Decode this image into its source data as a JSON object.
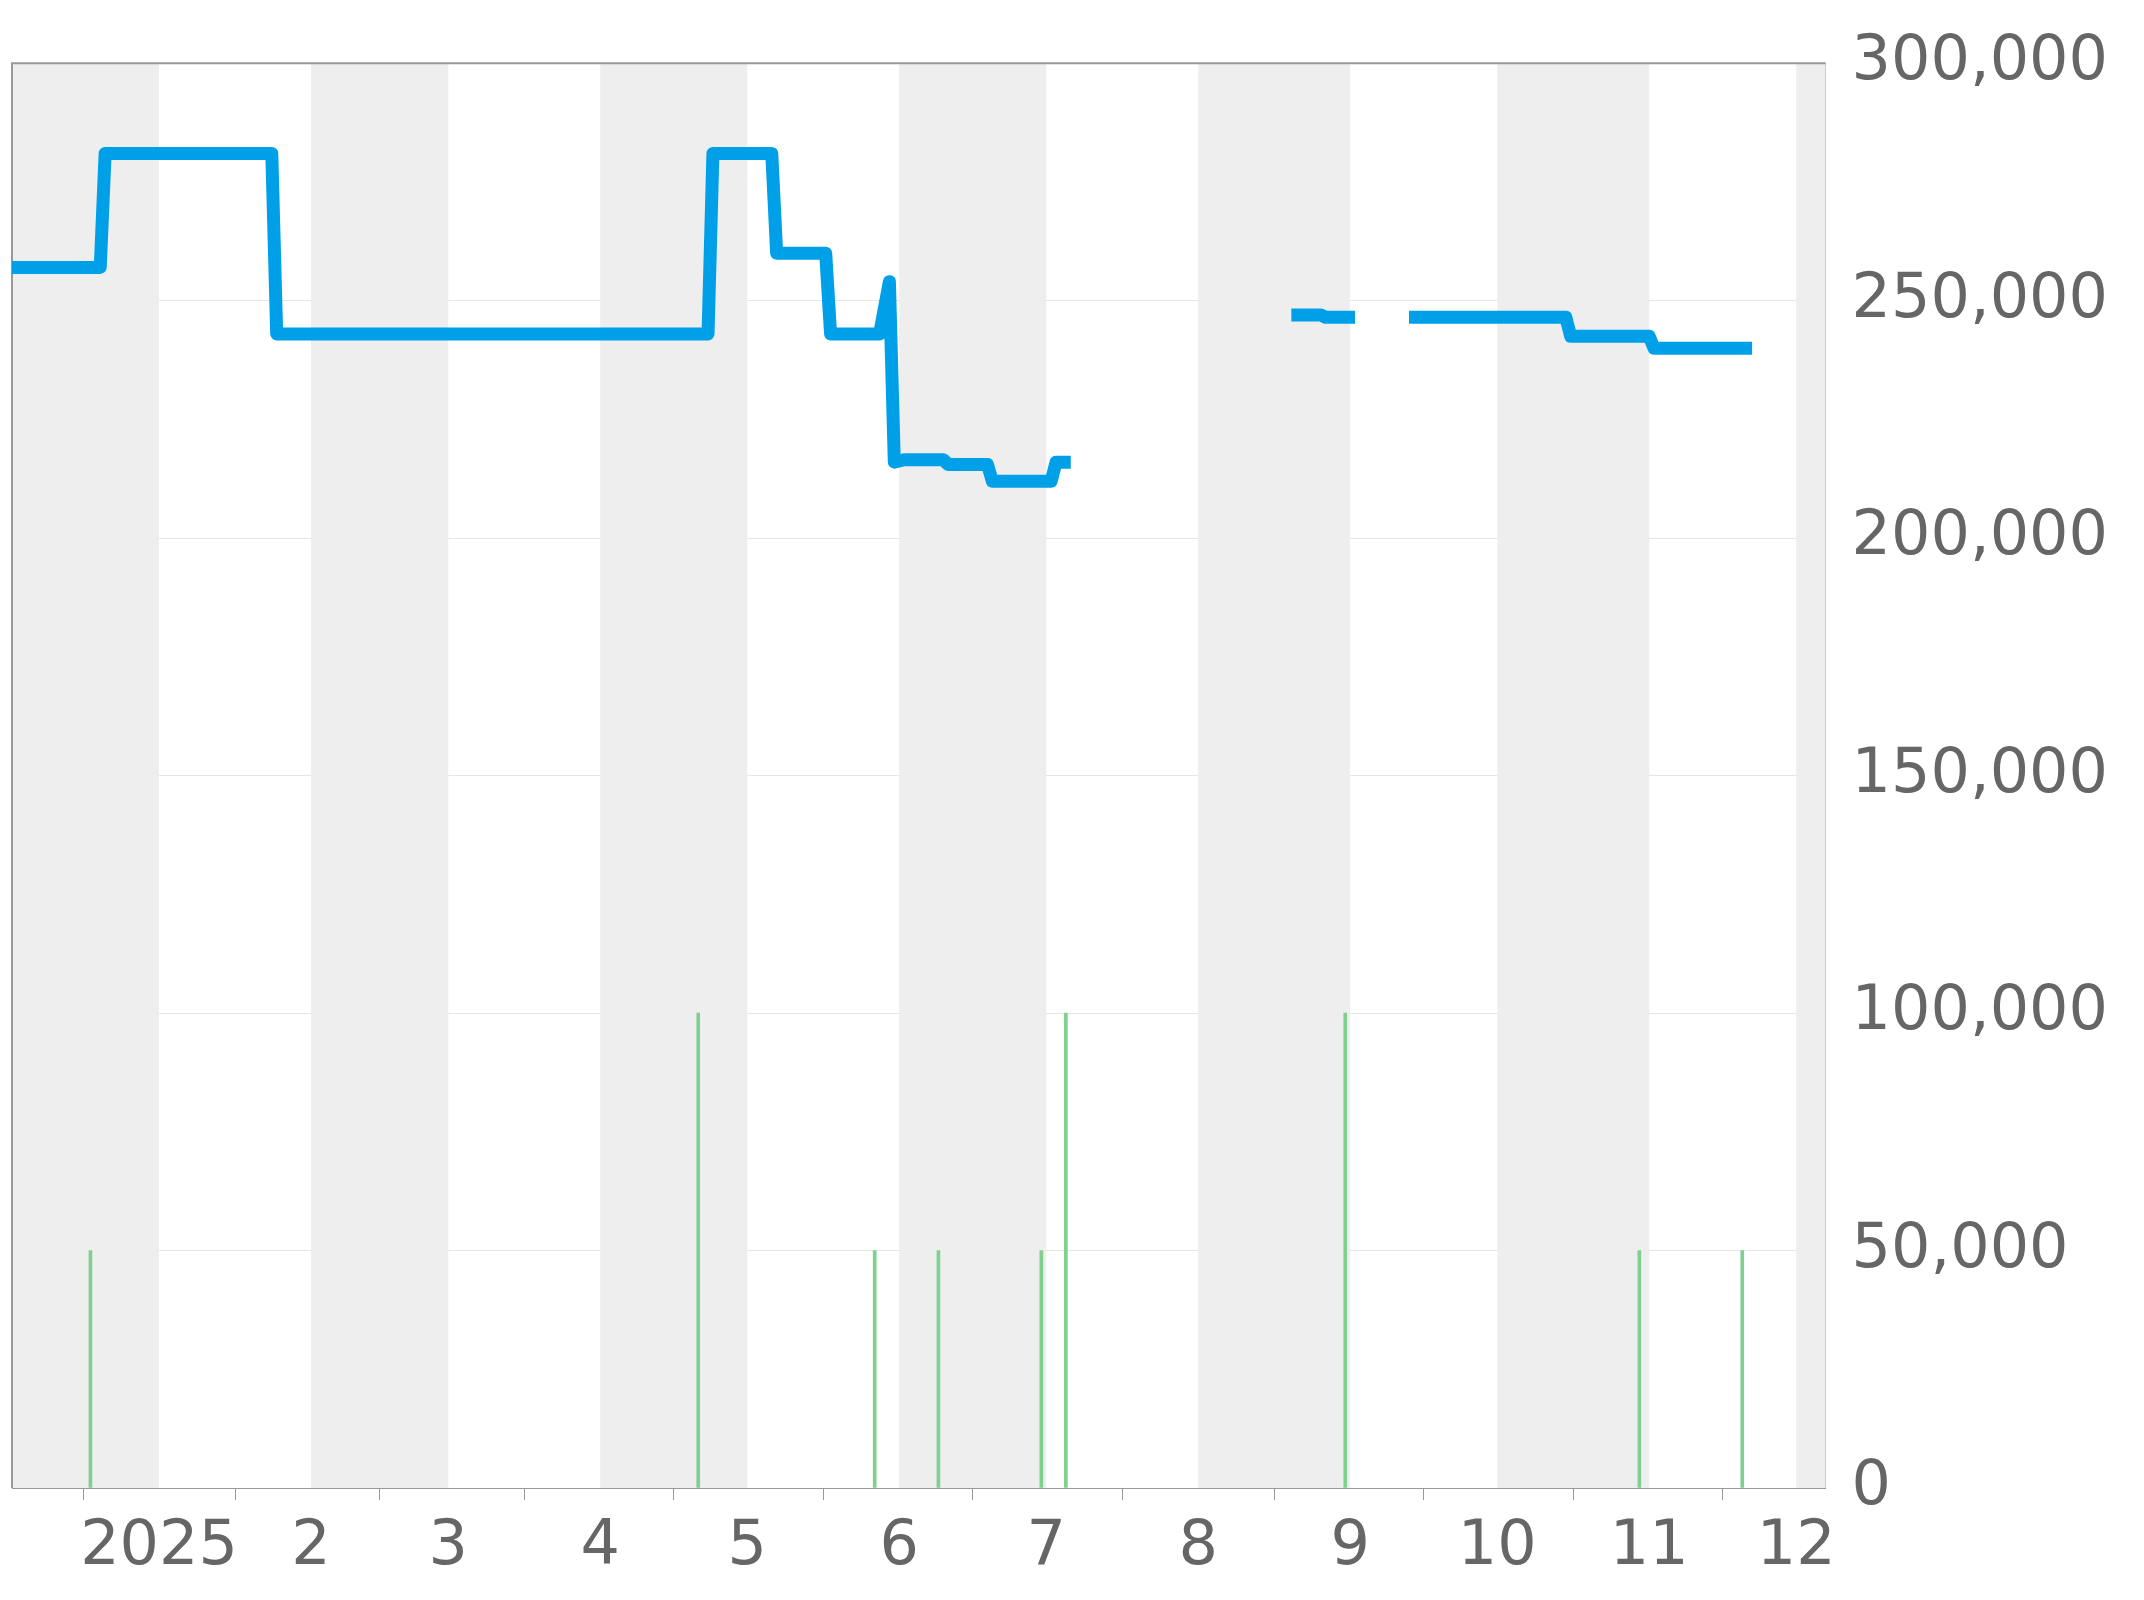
{
  "chart_data": {
    "type": "line",
    "xlim": [
      "2024-12-02",
      "2025-12-07"
    ],
    "ylim": [
      0,
      300000
    ],
    "xticks": [
      {
        "value": "2025-01-01",
        "label": "2025"
      },
      {
        "value": "2025-02-01",
        "label": "2"
      },
      {
        "value": "2025-03-01",
        "label": "3"
      },
      {
        "value": "2025-04-01",
        "label": "4"
      },
      {
        "value": "2025-05-01",
        "label": "5"
      },
      {
        "value": "2025-06-01",
        "label": "6"
      },
      {
        "value": "2025-07-01",
        "label": "7"
      },
      {
        "value": "2025-08-01",
        "label": "8"
      },
      {
        "value": "2025-09-01",
        "label": "9"
      },
      {
        "value": "2025-10-01",
        "label": "10"
      },
      {
        "value": "2025-11-01",
        "label": "11"
      },
      {
        "value": "2025-12-01",
        "label": "12"
      }
    ],
    "yticks": [
      {
        "value": 0,
        "label": "0"
      },
      {
        "value": 50000,
        "label": "50,000"
      },
      {
        "value": 100000,
        "label": "100,000"
      },
      {
        "value": 150000,
        "label": "150,000"
      },
      {
        "value": 200000,
        "label": "200,000"
      },
      {
        "value": 250000,
        "label": "250,000"
      },
      {
        "value": 300000,
        "label": "300,000"
      }
    ],
    "grid": "y",
    "legend": false,
    "marker": "none",
    "line_style": "solid",
    "bands": [
      {
        "axis": "x",
        "from": "2024-12-02",
        "to": "2025-01-01",
        "color": "#eeeeee"
      },
      {
        "axis": "x",
        "from": "2025-02-01",
        "to": "2025-03-01",
        "color": "#eeeeee"
      },
      {
        "axis": "x",
        "from": "2025-04-01",
        "to": "2025-05-01",
        "color": "#eeeeee"
      },
      {
        "axis": "x",
        "from": "2025-06-01",
        "to": "2025-07-01",
        "color": "#eeeeee"
      },
      {
        "axis": "x",
        "from": "2025-08-01",
        "to": "2025-09-01",
        "color": "#eeeeee"
      },
      {
        "axis": "x",
        "from": "2025-10-01",
        "to": "2025-11-01",
        "color": "#eeeeee"
      },
      {
        "axis": "x",
        "from": "2025-12-01",
        "to": "2025-12-07",
        "color": "#eeeeee"
      }
    ],
    "series": [
      {
        "color": "#00a0e9",
        "x": [
          "2024-12-02",
          "2024-12-20",
          "2024-12-21",
          "2025-01-24",
          "2025-01-25",
          "2025-04-23",
          "2025-04-24",
          "2025-05-06",
          "2025-05-07",
          "2025-05-17",
          "2025-05-18",
          "2025-05-28",
          "2025-05-30",
          "2025-05-31",
          "2025-06-02",
          "2025-06-10",
          "2025-06-11",
          "2025-06-19",
          "2025-06-20",
          "2025-07-02",
          "2025-07-03",
          "2025-07-06",
          "2025-07-20",
          "2025-08-20",
          "2025-08-26",
          "2025-08-27",
          "2025-09-02",
          "2025-09-07",
          "2025-09-13",
          "2025-10-15",
          "2025-10-16",
          "2025-11-01",
          "2025-11-02",
          "2025-11-22"
        ],
        "values": [
          257000,
          257000,
          281000,
          281000,
          243000,
          243000,
          281000,
          281000,
          260000,
          260000,
          243000,
          243000,
          254000,
          216000,
          216500,
          216500,
          215500,
          215500,
          212000,
          212000,
          216000,
          216000,
          null,
          247000,
          247000,
          246500,
          246500,
          null,
          246500,
          246500,
          242500,
          242500,
          240000,
          240000
        ]
      },
      {
        "type": "bar",
        "color": "#7fd08f",
        "x": [
          "2024-12-18",
          "2025-04-21",
          "2025-05-27",
          "2025-06-09",
          "2025-06-30",
          "2025-07-05",
          "2025-08-31",
          "2025-10-30",
          "2025-11-20"
        ],
        "values": [
          50000,
          100000,
          50000,
          50000,
          50000,
          100000,
          100000,
          50000,
          50000
        ]
      }
    ]
  }
}
